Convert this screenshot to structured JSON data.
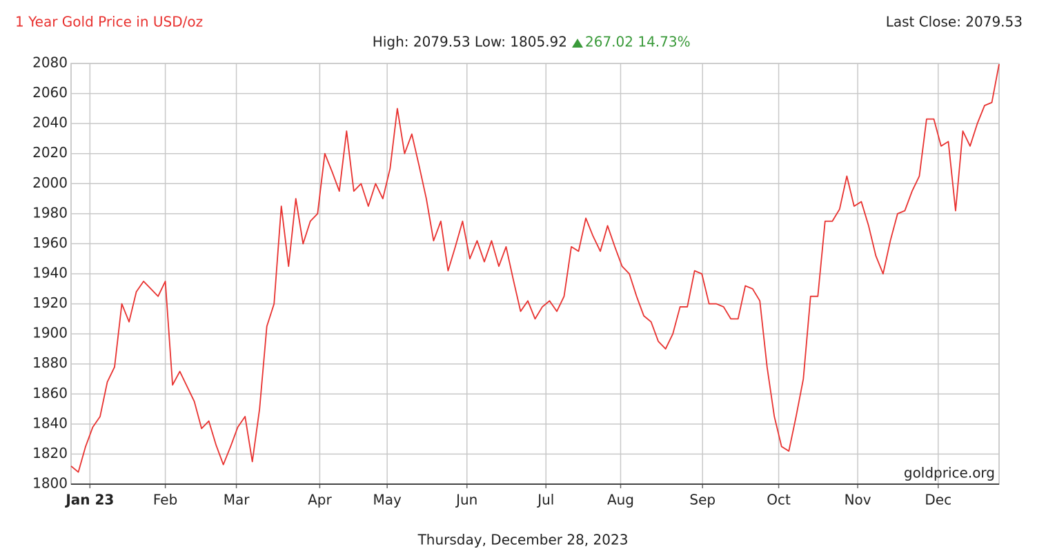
{
  "chart_data": {
    "type": "line",
    "title": "1 Year Gold Price in USD/oz",
    "last_close": "Last Close: 2079.53",
    "stats": "High: 2079.53 Low: 1805.92",
    "change": "267.02 14.73%",
    "watermark": "goldprice.org",
    "date": "Thursday, December 28, 2023",
    "series": [
      {
        "name": "Gold",
        "color": "#e8312f",
        "values": [
          1812,
          1808,
          1825,
          1838,
          1845,
          1868,
          1878,
          1920,
          1908,
          1928,
          1935,
          1930,
          1925,
          1935,
          1866,
          1875,
          1865,
          1855,
          1837,
          1842,
          1826,
          1813,
          1825,
          1838,
          1845,
          1815,
          1850,
          1905,
          1920,
          1985,
          1945,
          1990,
          1960,
          1975,
          1980,
          2020,
          2008,
          1995,
          2035,
          1995,
          2000,
          1985,
          2000,
          1990,
          2010,
          2050,
          2020,
          2033,
          2012,
          1990,
          1962,
          1975,
          1942,
          1958,
          1975,
          1950,
          1962,
          1948,
          1962,
          1945,
          1958,
          1936,
          1915,
          1922,
          1910,
          1918,
          1922,
          1915,
          1925,
          1958,
          1955,
          1977,
          1965,
          1955,
          1972,
          1958,
          1945,
          1940,
          1925,
          1912,
          1908,
          1895,
          1890,
          1900,
          1918,
          1918,
          1942,
          1940,
          1920,
          1920,
          1918,
          1910,
          1910,
          1932,
          1930,
          1922,
          1878,
          1845,
          1825,
          1822,
          1845,
          1870,
          1925,
          1925,
          1975,
          1975,
          1983,
          2005,
          1985,
          1988,
          1972,
          1952,
          1940,
          1962,
          1980,
          1982,
          1995,
          2005,
          2043,
          2043,
          2025,
          2028,
          1982,
          2035,
          2025,
          2040,
          2052,
          2054,
          2079.53
        ]
      }
    ],
    "xlim": [
      0,
      128
    ],
    "xticks": [
      {
        "value": 2.6,
        "label": "Jan 23"
      },
      {
        "value": 13,
        "label": "Feb"
      },
      {
        "value": 22.8,
        "label": "Mar"
      },
      {
        "value": 34.3,
        "label": "Apr"
      },
      {
        "value": 43.6,
        "label": "May"
      },
      {
        "value": 54.6,
        "label": "Jun"
      },
      {
        "value": 65.5,
        "label": "Jul"
      },
      {
        "value": 75.8,
        "label": "Aug"
      },
      {
        "value": 87.1,
        "label": "Sep"
      },
      {
        "value": 97.6,
        "label": "Oct"
      },
      {
        "value": 108.5,
        "label": "Nov"
      },
      {
        "value": 119.6,
        "label": "Dec"
      }
    ],
    "ylim": [
      1800,
      2080
    ],
    "yticks": [
      1800,
      1820,
      1840,
      1860,
      1880,
      1900,
      1920,
      1940,
      1960,
      1980,
      2000,
      2020,
      2040,
      2060,
      2080
    ],
    "grid": true
  }
}
